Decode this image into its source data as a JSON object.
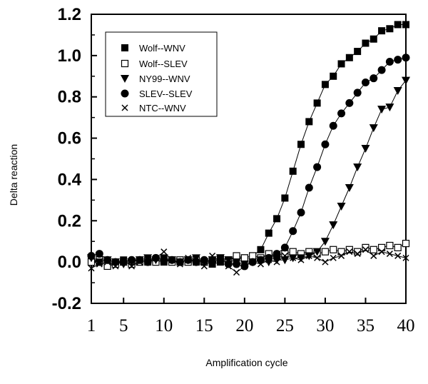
{
  "chart_data": {
    "type": "line",
    "xlabel": "Amplification cycle",
    "ylabel": "Delta reaction",
    "xlim": [
      1,
      40
    ],
    "ylim": [
      -0.2,
      1.2
    ],
    "xticks": [
      1,
      5,
      10,
      15,
      20,
      25,
      30,
      35,
      40
    ],
    "yticks": [
      "-0.2",
      "0.0",
      "0.2",
      "0.4",
      "0.6",
      "0.8",
      "1.0",
      "1.2"
    ],
    "grid": false,
    "legend_position": "top-left",
    "series": [
      {
        "name": "Wolf--WNV",
        "marker": "filled-square",
        "x": [
          1,
          2,
          3,
          4,
          5,
          6,
          7,
          8,
          9,
          10,
          11,
          12,
          13,
          14,
          15,
          16,
          17,
          18,
          19,
          20,
          21,
          22,
          23,
          24,
          25,
          26,
          27,
          28,
          29,
          30,
          31,
          32,
          33,
          34,
          35,
          36,
          37,
          38,
          39,
          40
        ],
        "y": [
          0.01,
          0.0,
          -0.01,
          0.0,
          0.01,
          0.0,
          0.01,
          0.0,
          0.01,
          0.0,
          0.01,
          0.0,
          0.01,
          0.0,
          0.0,
          -0.01,
          0.0,
          0.01,
          0.02,
          0.02,
          0.03,
          0.06,
          0.14,
          0.21,
          0.31,
          0.44,
          0.57,
          0.68,
          0.77,
          0.86,
          0.9,
          0.96,
          0.99,
          1.02,
          1.06,
          1.08,
          1.12,
          1.13,
          1.15,
          1.15
        ]
      },
      {
        "name": "Wolf--SLEV",
        "marker": "open-square",
        "x": [
          1,
          2,
          3,
          4,
          5,
          6,
          7,
          8,
          9,
          10,
          11,
          12,
          13,
          14,
          15,
          16,
          17,
          18,
          19,
          20,
          21,
          22,
          23,
          24,
          25,
          26,
          27,
          28,
          29,
          30,
          31,
          32,
          33,
          34,
          35,
          36,
          37,
          38,
          39,
          40
        ],
        "y": [
          0.0,
          0.01,
          -0.02,
          -0.01,
          0.0,
          -0.01,
          0.0,
          0.01,
          0.0,
          0.01,
          0.0,
          0.01,
          0.0,
          0.01,
          0.0,
          0.01,
          0.02,
          0.01,
          0.03,
          0.02,
          0.03,
          0.02,
          0.04,
          0.03,
          0.04,
          0.05,
          0.04,
          0.05,
          0.04,
          0.05,
          0.06,
          0.05,
          0.06,
          0.05,
          0.07,
          0.06,
          0.07,
          0.08,
          0.07,
          0.09
        ]
      },
      {
        "name": "NY99--WNV",
        "marker": "filled-triangle-down",
        "x": [
          1,
          2,
          3,
          4,
          5,
          6,
          7,
          8,
          9,
          10,
          11,
          12,
          13,
          14,
          15,
          16,
          17,
          18,
          19,
          20,
          21,
          22,
          23,
          24,
          25,
          26,
          27,
          28,
          29,
          30,
          31,
          32,
          33,
          34,
          35,
          36,
          37,
          38,
          39,
          40
        ],
        "y": [
          0.02,
          0.0,
          0.01,
          0.0,
          -0.01,
          0.0,
          0.01,
          0.02,
          0.01,
          0.02,
          0.01,
          0.0,
          0.01,
          0.02,
          0.0,
          0.01,
          0.02,
          0.01,
          0.0,
          -0.01,
          0.0,
          0.01,
          0.0,
          0.01,
          0.01,
          0.02,
          0.02,
          0.03,
          0.05,
          0.1,
          0.18,
          0.27,
          0.36,
          0.46,
          0.55,
          0.65,
          0.74,
          0.75,
          0.83,
          0.88
        ]
      },
      {
        "name": "SLEV--SLEV",
        "marker": "filled-circle",
        "x": [
          1,
          2,
          3,
          4,
          5,
          6,
          7,
          8,
          9,
          10,
          11,
          12,
          13,
          14,
          15,
          16,
          17,
          18,
          19,
          20,
          21,
          22,
          23,
          24,
          25,
          26,
          27,
          28,
          29,
          30,
          31,
          32,
          33,
          34,
          35,
          36,
          37,
          38,
          39,
          40
        ],
        "y": [
          0.03,
          0.04,
          0.01,
          0.0,
          0.0,
          0.01,
          0.01,
          0.0,
          0.02,
          0.01,
          0.01,
          0.0,
          0.01,
          0.0,
          0.01,
          0.0,
          0.01,
          -0.01,
          -0.01,
          -0.02,
          0.0,
          0.01,
          0.02,
          0.04,
          0.07,
          0.15,
          0.24,
          0.36,
          0.46,
          0.57,
          0.66,
          0.72,
          0.77,
          0.82,
          0.87,
          0.89,
          0.93,
          0.97,
          0.98,
          0.99
        ]
      },
      {
        "name": "NTC--WNV",
        "marker": "x",
        "x": [
          1,
          2,
          3,
          4,
          5,
          6,
          7,
          8,
          9,
          10,
          11,
          12,
          13,
          14,
          15,
          16,
          17,
          18,
          19,
          20,
          21,
          22,
          23,
          24,
          25,
          26,
          27,
          28,
          29,
          30,
          31,
          32,
          33,
          34,
          35,
          36,
          37,
          38,
          39,
          40
        ],
        "y": [
          -0.03,
          -0.01,
          0.0,
          -0.02,
          0.01,
          -0.02,
          0.0,
          0.01,
          0.02,
          0.05,
          0.01,
          -0.01,
          0.02,
          0.0,
          -0.02,
          0.03,
          0.0,
          -0.02,
          -0.05,
          -0.02,
          0.0,
          -0.01,
          0.01,
          0.0,
          0.03,
          0.02,
          0.01,
          0.03,
          0.02,
          0.0,
          0.02,
          0.03,
          0.05,
          0.04,
          0.06,
          0.03,
          0.05,
          0.04,
          0.03,
          0.02
        ]
      }
    ]
  }
}
